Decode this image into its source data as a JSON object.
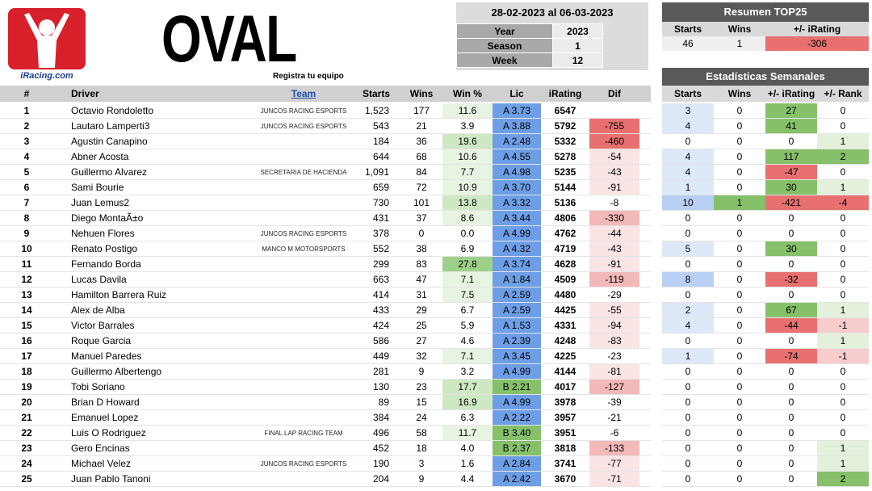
{
  "logo_text": "iRacing.com",
  "title": "OVAL",
  "subtitle": "Registra tu equipo",
  "date_range": "28-02-2023 al 06-03-2023",
  "meta": [
    {
      "k": "Year",
      "v": "2023"
    },
    {
      "k": "Season",
      "v": "1"
    },
    {
      "k": "Week",
      "v": "12"
    }
  ],
  "summary": {
    "title": "Resumen TOP25",
    "headers": [
      "Starts",
      "Wins",
      "+/- iRating"
    ],
    "values": [
      "46",
      "1",
      "-306"
    ]
  },
  "weekly": {
    "title": "Estadísticas Semanales",
    "headers": [
      "Starts",
      "Wins",
      "+/- iRating",
      "+/- Rank"
    ]
  },
  "columns": {
    "pos": "#",
    "driver": "Driver",
    "team": "Team",
    "starts": "Starts",
    "wins": "Wins",
    "winpct": "Win %",
    "lic": "Lic",
    "irating": "iRating",
    "dif": "Dif"
  },
  "rows": [
    {
      "pos": "1",
      "flag": "ar",
      "driver": "Octavio Rondoletto",
      "team": "JUNCOS RACING ESPORTS",
      "starts": "1,523",
      "wins": "177",
      "winpct": "11.6",
      "lic": "A 3.73",
      "irating": "6547",
      "dif": "",
      "w": [
        "3",
        "0",
        "27",
        "0"
      ]
    },
    {
      "pos": "2",
      "flag": "ar",
      "driver": "Lautaro Lamperti3",
      "team": "JUNCOS RACING ESPORTS",
      "starts": "543",
      "wins": "21",
      "winpct": "3.9",
      "lic": "A 3.88",
      "irating": "5792",
      "dif": "-755",
      "w": [
        "4",
        "0",
        "41",
        "0"
      ]
    },
    {
      "pos": "3",
      "flag": "ar",
      "driver": "Agustin Canapino",
      "team": "",
      "starts": "184",
      "wins": "36",
      "winpct": "19.6",
      "lic": "A 2.48",
      "irating": "5332",
      "dif": "-460",
      "w": [
        "0",
        "0",
        "0",
        "1"
      ]
    },
    {
      "pos": "4",
      "flag": "us",
      "driver": "Abner Acosta",
      "team": "",
      "starts": "644",
      "wins": "68",
      "winpct": "10.6",
      "lic": "A 4.55",
      "irating": "5278",
      "dif": "-54",
      "w": [
        "4",
        "0",
        "117",
        "2"
      ]
    },
    {
      "pos": "5",
      "flag": "mx",
      "driver": "Guillermo Alvarez",
      "team": "SECRETARIA DE HACIENDA",
      "starts": "1,091",
      "wins": "84",
      "winpct": "7.7",
      "lic": "A 4.98",
      "irating": "5235",
      "dif": "-43",
      "w": [
        "4",
        "0",
        "-47",
        "0"
      ]
    },
    {
      "pos": "6",
      "flag": "ar",
      "driver": "Sami Bourie",
      "team": "",
      "starts": "659",
      "wins": "72",
      "winpct": "10.9",
      "lic": "A 3.70",
      "irating": "5144",
      "dif": "-91",
      "w": [
        "1",
        "0",
        "30",
        "1"
      ]
    },
    {
      "pos": "7",
      "flag": "mx",
      "driver": "Juan Lemus2",
      "team": "",
      "starts": "730",
      "wins": "101",
      "winpct": "13.8",
      "lic": "A 3.32",
      "irating": "5136",
      "dif": "-8",
      "w": [
        "10",
        "1",
        "-421",
        "-4"
      ]
    },
    {
      "pos": "8",
      "flag": "mx",
      "driver": "Diego MontaÃ±o",
      "team": "",
      "starts": "431",
      "wins": "37",
      "winpct": "8.6",
      "lic": "A 3.44",
      "irating": "4806",
      "dif": "-330",
      "w": [
        "0",
        "0",
        "0",
        "0"
      ]
    },
    {
      "pos": "9",
      "flag": "ar",
      "driver": "Nehuen Flores",
      "team": "JUNCOS RACING ESPORTS",
      "starts": "378",
      "wins": "0",
      "winpct": "0.0",
      "lic": "A 4.99",
      "irating": "4762",
      "dif": "-44",
      "w": [
        "0",
        "0",
        "0",
        "0"
      ]
    },
    {
      "pos": "10",
      "flag": "pe",
      "driver": "Renato Postigo",
      "team": "MANCO M MOTORSPORTS",
      "starts": "552",
      "wins": "38",
      "winpct": "6.9",
      "lic": "A 4.32",
      "irating": "4719",
      "dif": "-43",
      "w": [
        "5",
        "0",
        "30",
        "0"
      ]
    },
    {
      "pos": "11",
      "flag": "ar",
      "driver": "Fernando Borda",
      "team": "",
      "starts": "299",
      "wins": "83",
      "winpct": "27.8",
      "lic": "A 3.74",
      "irating": "4628",
      "dif": "-91",
      "w": [
        "0",
        "0",
        "0",
        "0"
      ]
    },
    {
      "pos": "12",
      "flag": "ar",
      "driver": "Lucas Davila",
      "team": "",
      "starts": "663",
      "wins": "47",
      "winpct": "7.1",
      "lic": "A 1.84",
      "irating": "4509",
      "dif": "-119",
      "w": [
        "8",
        "0",
        "-32",
        "0"
      ]
    },
    {
      "pos": "13",
      "flag": "co",
      "driver": "Hamilton Barrera Ruiz",
      "team": "",
      "starts": "414",
      "wins": "31",
      "winpct": "7.5",
      "lic": "A 2.59",
      "irating": "4480",
      "dif": "-29",
      "w": [
        "0",
        "0",
        "0",
        "0"
      ]
    },
    {
      "pos": "14",
      "flag": "mx",
      "driver": "Alex de Alba",
      "team": "",
      "starts": "433",
      "wins": "29",
      "winpct": "6.7",
      "lic": "A 2.59",
      "irating": "4425",
      "dif": "-55",
      "w": [
        "2",
        "0",
        "67",
        "1"
      ]
    },
    {
      "pos": "15",
      "flag": "mx",
      "driver": "Victor Barrales",
      "team": "",
      "starts": "424",
      "wins": "25",
      "winpct": "5.9",
      "lic": "A 1.53",
      "irating": "4331",
      "dif": "-94",
      "w": [
        "4",
        "0",
        "-44",
        "-1"
      ]
    },
    {
      "pos": "16",
      "flag": "ar",
      "driver": "Roque Garcia",
      "team": "",
      "starts": "586",
      "wins": "27",
      "winpct": "4.6",
      "lic": "A 2.39",
      "irating": "4248",
      "dif": "-83",
      "w": [
        "0",
        "0",
        "0",
        "1"
      ]
    },
    {
      "pos": "17",
      "flag": "cl",
      "driver": "Manuel Paredes",
      "team": "",
      "starts": "449",
      "wins": "32",
      "winpct": "7.1",
      "lic": "A 3.45",
      "irating": "4225",
      "dif": "-23",
      "w": [
        "1",
        "0",
        "-74",
        "-1"
      ]
    },
    {
      "pos": "18",
      "flag": "ar",
      "driver": "Guillermo Albertengo",
      "team": "",
      "starts": "281",
      "wins": "9",
      "winpct": "3.2",
      "lic": "A 4.99",
      "irating": "4144",
      "dif": "-81",
      "w": [
        "0",
        "0",
        "0",
        "0"
      ]
    },
    {
      "pos": "19",
      "flag": "ar",
      "driver": "Tobi Soriano",
      "team": "",
      "starts": "130",
      "wins": "23",
      "winpct": "17.7",
      "lic": "B 2.21",
      "irating": "4017",
      "dif": "-127",
      "w": [
        "0",
        "0",
        "0",
        "0"
      ]
    },
    {
      "pos": "20",
      "flag": "cr",
      "driver": "Brian D Howard",
      "team": "",
      "starts": "89",
      "wins": "15",
      "winpct": "16.9",
      "lic": "A 4.99",
      "irating": "3978",
      "dif": "-39",
      "w": [
        "0",
        "0",
        "0",
        "0"
      ]
    },
    {
      "pos": "21",
      "flag": "ar",
      "driver": "Emanuel Lopez",
      "team": "",
      "starts": "384",
      "wins": "24",
      "winpct": "6.3",
      "lic": "A 2.22",
      "irating": "3957",
      "dif": "-21",
      "w": [
        "0",
        "0",
        "0",
        "0"
      ]
    },
    {
      "pos": "22",
      "flag": "us",
      "driver": "Luis O Rodriguez",
      "team": "FINAL LAP RACING TEAM",
      "starts": "496",
      "wins": "58",
      "winpct": "11.7",
      "lic": "B 3.40",
      "irating": "3951",
      "dif": "-6",
      "w": [
        "0",
        "0",
        "0",
        "0"
      ]
    },
    {
      "pos": "23",
      "flag": "ar",
      "driver": "Gero Encinas",
      "team": "",
      "starts": "452",
      "wins": "18",
      "winpct": "4.0",
      "lic": "B 2.37",
      "irating": "3818",
      "dif": "-133",
      "w": [
        "0",
        "0",
        "0",
        "1"
      ]
    },
    {
      "pos": "24",
      "flag": "co",
      "driver": "Michael Velez",
      "team": "JUNCOS RACING ESPORTS",
      "starts": "190",
      "wins": "3",
      "winpct": "1.6",
      "lic": "A 2.84",
      "irating": "3741",
      "dif": "-77",
      "w": [
        "0",
        "0",
        "0",
        "1"
      ]
    },
    {
      "pos": "25",
      "flag": "ar",
      "driver": "Juan Pablo Tanoni",
      "team": "",
      "starts": "204",
      "wins": "9",
      "winpct": "4.4",
      "lic": "A 2.42",
      "irating": "3670",
      "dif": "-71",
      "w": [
        "0",
        "0",
        "0",
        "2"
      ]
    }
  ],
  "colors": {
    "lic_a": "#6e9ee6",
    "lic_b": "#86c06a",
    "dif_strong": "#e87070",
    "pos_change": "#86c06a",
    "neg_change": "#e87070",
    "starts_tint": "#dde8f8"
  }
}
